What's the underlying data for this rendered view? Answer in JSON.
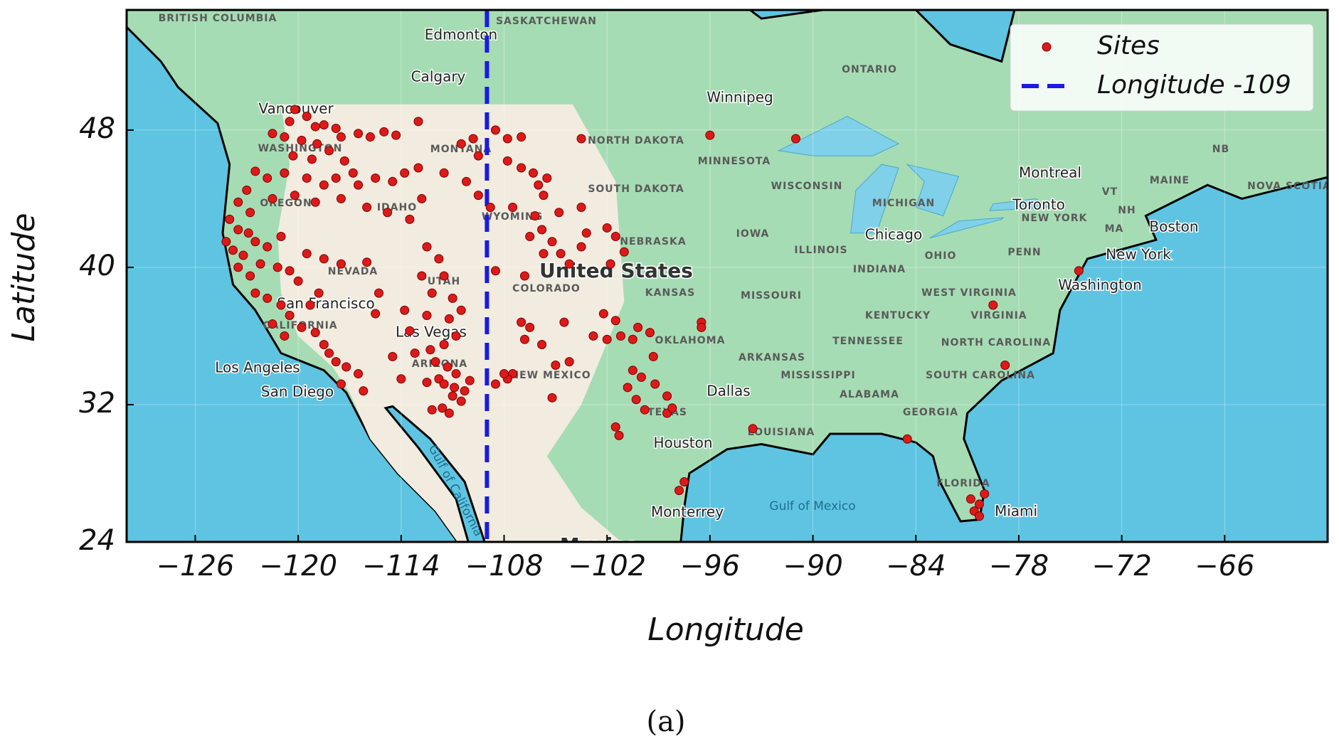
{
  "chart_data": {
    "type": "scatter",
    "xlabel": "Longitude",
    "ylabel": "Latitude",
    "caption": "(a)",
    "xlim": [
      -130,
      -60
    ],
    "ylim": [
      24,
      55
    ],
    "xticks": [
      {
        "value": -126,
        "label": "−126"
      },
      {
        "value": -120,
        "label": "−120"
      },
      {
        "value": -114,
        "label": "−114"
      },
      {
        "value": -108,
        "label": "−108"
      },
      {
        "value": -102,
        "label": "−102"
      },
      {
        "value": -96,
        "label": "−96"
      },
      {
        "value": -90,
        "label": "−90"
      },
      {
        "value": -84,
        "label": "−84"
      },
      {
        "value": -78,
        "label": "−78"
      },
      {
        "value": -72,
        "label": "−72"
      },
      {
        "value": -66,
        "label": "−66"
      }
    ],
    "yticks": [
      24,
      32,
      40,
      48
    ],
    "grid": true,
    "legend": "upper right",
    "series": [
      {
        "name": "Sites",
        "color": "#dd1a1a",
        "x": [
          -120.2,
          -119.5,
          -120.5,
          -119,
          -118.5,
          -117.8,
          -121.5,
          -120.8,
          -119.8,
          -118.9,
          -117.5,
          -116.5,
          -115.8,
          -115,
          -114.3,
          -113,
          -120.3,
          -119.2,
          -118.2,
          -117.3,
          -116.8,
          -117.8,
          -118.5,
          -119.5,
          -120.8,
          -121.8,
          -122.5,
          -123,
          -123.5,
          -122.8,
          -121.5,
          -120.2,
          -119,
          -117.5,
          -116.5,
          -115.5,
          -114.5,
          -113.8,
          -113,
          -116,
          -114.8,
          -113.5,
          -112.8,
          -111.5,
          -124,
          -123.5,
          -124.2,
          -123.8,
          -123.2,
          -122.5,
          -121.8,
          -121,
          -123.5,
          -122.8,
          -122.2,
          -121.2,
          -120.5,
          -120,
          -122.5,
          -121.8,
          -121,
          -120.5,
          -119.8,
          -119,
          -118.5,
          -118.2,
          -117.8,
          -117.2,
          -116.5,
          -117.5,
          -116.2,
          -119.3,
          -118.8,
          -120.8,
          -121.5,
          -122.9,
          -117.5,
          -118.5,
          -119.5,
          -116,
          -115.3,
          -115.5,
          -113.8,
          -112.5,
          -111.8,
          -111.5,
          -112.2,
          -111,
          -110.5,
          -111.2,
          -112.5,
          -110.8,
          -111.5,
          -112.3,
          -113.2,
          -112,
          -111.3,
          -110.8,
          -111.8,
          -112.5,
          -111.5,
          -110.9,
          -110.3,
          -110,
          -111,
          -110.5,
          -111.6,
          -111.2,
          -112.2,
          -114,
          -114.5,
          -113.5,
          -112.8,
          -110.5,
          -109.8,
          -109.5,
          -108.5,
          -107.8,
          -107,
          -107.8,
          -107,
          -106.3,
          -105.5,
          -106,
          -105.7,
          -107.5,
          -106.2,
          -104.8,
          -105.8,
          -106.5,
          -105.2,
          -104.7,
          -103.5,
          -104.2,
          -105.7,
          -106.8,
          -108.5,
          -108.8,
          -109.5,
          -110.2,
          -107,
          -106.5,
          -105.8,
          -106.8,
          -105,
          -104.2,
          -107.5,
          -107.8,
          -108.5,
          -108,
          -105.2,
          -104.5,
          -102.2,
          -103.2,
          -102,
          -101.5,
          -101,
          -101.8,
          -103.5,
          -102.8,
          -102,
          -101.2,
          -100.5,
          -100.2,
          -99.5,
          -101.5,
          -96.5,
          -96.5,
          -99.3,
          -100.5,
          -100,
          -100.8,
          -99.2,
          -98.5,
          -100.3,
          -99.8,
          -98.5,
          -101.5,
          -101.3,
          -98.2,
          -97.5,
          -97.8,
          -103.5,
          -96,
          -91,
          -74.5,
          -78.8,
          -79.5,
          -93.5,
          -84.5,
          -80.3,
          -80.6,
          -80.3,
          -80.8,
          -80
        ],
        "y": [
          49.2,
          48.8,
          48.5,
          48.2,
          48.3,
          48.1,
          47.8,
          47.6,
          47.4,
          47.2,
          47.6,
          47.8,
          47.6,
          47.9,
          47.7,
          48.5,
          46.5,
          46.3,
          46.8,
          46.2,
          45.5,
          45.2,
          44.8,
          45.2,
          45.5,
          45.2,
          45.6,
          44.5,
          43.8,
          43.2,
          44,
          44.2,
          43.8,
          44,
          44.8,
          45.2,
          45,
          45.5,
          45.8,
          43.5,
          43.2,
          42.8,
          44,
          45.5,
          42.8,
          42.2,
          41.5,
          41,
          40.7,
          41.5,
          41.2,
          41.8,
          40,
          39.5,
          40.2,
          40,
          39.8,
          39.2,
          38.5,
          38.2,
          37.8,
          37.2,
          36.5,
          36.2,
          35.5,
          35,
          34.5,
          34.2,
          33.8,
          33.2,
          32.8,
          37.8,
          38.5,
          36,
          36.7,
          42,
          40.2,
          40.5,
          40.8,
          40.3,
          38.5,
          37.3,
          37.5,
          41.2,
          40.5,
          39.5,
          38.5,
          38.2,
          37.5,
          37,
          37.2,
          36,
          35.5,
          35.2,
          35,
          34.5,
          34.2,
          33.8,
          33.5,
          33.3,
          33.2,
          33,
          32.8,
          33.4,
          32.5,
          32.2,
          31.8,
          31.5,
          31.7,
          33.5,
          34.8,
          36.3,
          39.5,
          47.2,
          47.5,
          46.5,
          48,
          47.5,
          47.6,
          46.2,
          45.8,
          45.5,
          45.2,
          44.8,
          44.2,
          43.5,
          43,
          43.2,
          42.2,
          41.8,
          41.5,
          40.8,
          41.2,
          40.2,
          40.8,
          39.5,
          39.8,
          43.5,
          44.2,
          45,
          36.8,
          36.5,
          35.5,
          35.8,
          34.3,
          34.5,
          33.8,
          33.5,
          33.2,
          33.8,
          32.4,
          36.8,
          37.3,
          42,
          42.3,
          41.8,
          40.9,
          40.2,
          43.5,
          36,
          35.8,
          36,
          35.8,
          36.5,
          36.2,
          36.9,
          36.8,
          36.5,
          34.8,
          34,
          33.6,
          33,
          33.2,
          32.5,
          32.3,
          31.7,
          31.5,
          30.7,
          30.2,
          31.8,
          27.5,
          27,
          47.5,
          47.7,
          47.5,
          39.8,
          34.3,
          37.8,
          30.6,
          30,
          26.2,
          25.8,
          25.5,
          26.5,
          26.8
        ]
      }
    ],
    "reference_lines": [
      {
        "name": "Longitude -109",
        "x": -109,
        "color": "#1a1ae6",
        "dashed": true
      }
    ],
    "map_labels": [
      "BRITISH COLUMBIA",
      "SASKATCHEWAN",
      "Edmonton",
      "Calgary",
      "Winnipeg",
      "ONTARIO",
      "Vancouver",
      "WASHINGTON",
      "MONTANA",
      "NORTH DAKOTA",
      "MINNESOTA",
      "WISCONSIN",
      "SOUTH DAKOTA",
      "OREGON",
      "IDAHO",
      "WYOMING",
      "MICHIGAN",
      "Toronto",
      "NEW YORK",
      "IOWA",
      "NEBRASKA",
      "Chicago",
      "ILLINOIS",
      "OHIO",
      "PENN",
      "Montreal",
      "MAINE",
      "Boston",
      "New York",
      "NEVADA",
      "UTAH",
      "United States",
      "COLORADO",
      "KANSAS",
      "MISSOURI",
      "INDIANA",
      "WEST VIRGINIA",
      "Washington",
      "San Francisco",
      "KENTUCKY",
      "VIRGINIA",
      "CALIFORNIA",
      "Las Vegas",
      "OKLAHOMA",
      "TENNESSEE",
      "NORTH CAROLINA",
      "ARKANSAS",
      "ARIZONA",
      "Los Angeles",
      "NEW MEXICO",
      "MISSISSIPPI",
      "SOUTH CAROLINA",
      "San Diego",
      "Dallas",
      "ALABAMA",
      "TEXAS",
      "GEORGIA",
      "LOUISIANA",
      "Houston",
      "FLORIDA",
      "Miami",
      "Monterrey",
      "Gulf of Mexico",
      "Gulf of California",
      "Mexico",
      "NB",
      "VT",
      "NH",
      "MA",
      "NOVA SCOTIA"
    ]
  }
}
